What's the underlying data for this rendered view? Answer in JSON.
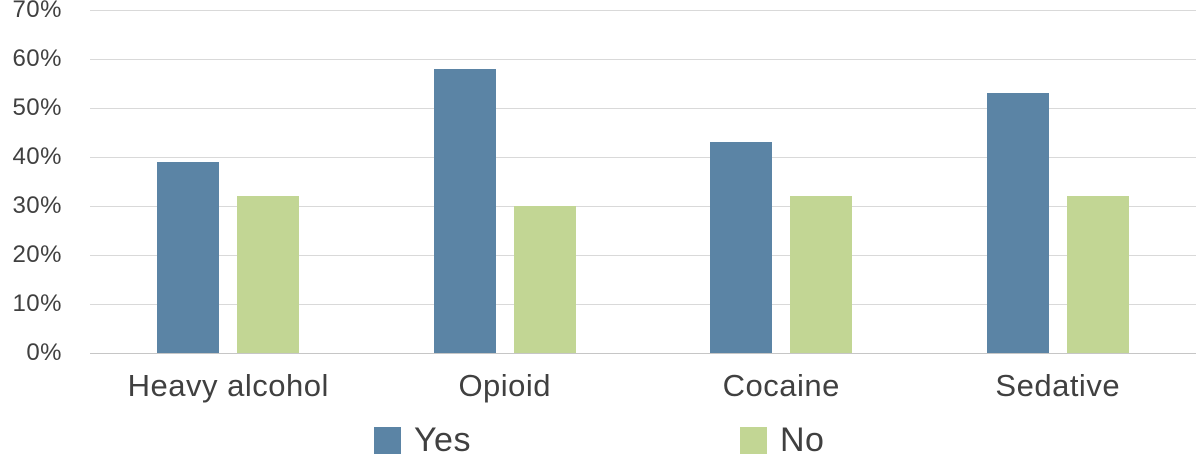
{
  "chart_data": {
    "type": "bar",
    "title": "",
    "xlabel": "",
    "ylabel": "",
    "categories": [
      "Heavy alcohol",
      "Opioid",
      "Cocaine",
      "Sedative"
    ],
    "series": [
      {
        "name": "Yes",
        "color": "#5B84A5",
        "values": [
          39,
          58,
          43,
          53
        ]
      },
      {
        "name": "No",
        "color": "#C2D694",
        "values": [
          32,
          30,
          32,
          32
        ]
      }
    ],
    "yticks": [
      "70%",
      "60%",
      "50%",
      "40%",
      "30%",
      "20%",
      "10%",
      "0%"
    ],
    "ytick_values": [
      70,
      60,
      50,
      40,
      30,
      20,
      10,
      0
    ],
    "ylim": [
      0,
      70
    ],
    "grid": true,
    "legend_position": "bottom"
  },
  "colors": {
    "background": "#FFFFFF",
    "text": "#404040",
    "gridline": "#D9D9D9",
    "series_yes": "#5B84A5",
    "series_no": "#C2D694"
  }
}
